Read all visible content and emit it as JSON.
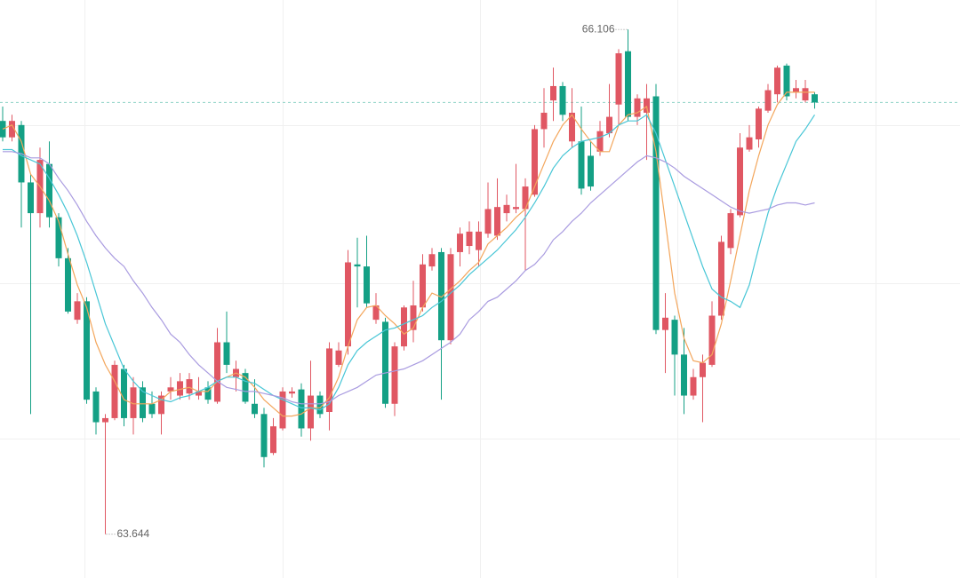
{
  "chart_data": {
    "type": "candlestick",
    "ylim": [
      63.43,
      66.25
    ],
    "yticks": [
      65.64,
      64.87,
      64.11
    ],
    "grid": true,
    "up_color": "#e05763",
    "down_color": "#14a085",
    "last_price_line": {
      "color": "#8fd3c8",
      "dashed": true
    },
    "extreme_labels": true,
    "open": [
      65.66,
      65.58,
      65.64,
      65.36,
      65.21,
      65.45,
      65.19,
      64.99,
      64.69,
      64.78,
      64.34,
      64.19,
      64.21,
      64.45,
      64.21,
      64.36,
      64.28,
      64.23,
      64.34,
      64.32,
      64.33,
      64.32,
      64.36,
      64.29,
      64.58,
      64.41,
      64.43,
      64.28,
      64.23,
      64.04,
      64.16,
      64.33,
      64.35,
      64.16,
      64.32,
      64.24,
      64.47,
      64.56,
      64.96,
      64.95,
      64.69,
      64.68,
      64.28,
      64.56,
      64.64,
      64.75,
      64.95,
      65.02,
      64.59,
      65.02,
      65.05,
      65.03,
      65.11,
      65.1,
      65.21,
      65.23,
      65.23,
      65.3,
      65.62,
      65.76,
      65.83,
      65.56,
      65.56,
      65.49,
      65.51,
      65.6,
      65.74,
      66.0,
      65.68,
      65.7,
      65.78,
      64.64,
      64.69,
      64.52,
      64.32,
      64.41,
      64.47,
      64.71,
      65.04,
      65.2,
      65.52,
      65.57,
      65.71,
      65.79,
      65.93,
      65.8,
      65.76,
      65.79
    ],
    "high": [
      65.73,
      65.69,
      65.66,
      65.4,
      65.53,
      65.56,
      65.21,
      65.04,
      64.82,
      64.8,
      64.36,
      64.23,
      64.49,
      64.47,
      64.41,
      64.39,
      64.34,
      64.34,
      64.41,
      64.43,
      64.43,
      64.41,
      64.39,
      64.65,
      64.73,
      64.49,
      64.45,
      64.4,
      64.26,
      64.21,
      64.36,
      64.36,
      64.38,
      64.49,
      64.34,
      64.58,
      64.58,
      65.03,
      65.09,
      65.1,
      64.82,
      64.7,
      64.58,
      64.76,
      64.88,
      65.01,
      65.04,
      65.04,
      65.04,
      65.14,
      65.17,
      65.17,
      65.36,
      65.38,
      65.3,
      65.45,
      65.38,
      65.64,
      65.82,
      65.92,
      65.85,
      65.82,
      65.73,
      65.56,
      65.66,
      65.84,
      66.01,
      66.106,
      65.79,
      65.84,
      65.84,
      64.82,
      64.71,
      64.65,
      64.45,
      64.52,
      64.78,
      65.1,
      65.23,
      65.6,
      65.64,
      65.73,
      65.84,
      65.93,
      65.94,
      65.86,
      65.86,
      65.8
    ],
    "low": [
      65.56,
      65.56,
      65.14,
      64.23,
      65.14,
      65.14,
      64.95,
      64.72,
      64.67,
      64.28,
      64.13,
      63.644,
      64.2,
      64.17,
      64.13,
      64.19,
      64.21,
      64.13,
      64.3,
      64.3,
      64.3,
      64.3,
      64.28,
      64.28,
      64.43,
      64.34,
      64.28,
      64.21,
      63.97,
      64.03,
      64.15,
      64.31,
      64.12,
      64.1,
      64.21,
      64.15,
      64.46,
      64.52,
      64.75,
      64.75,
      64.67,
      64.26,
      64.22,
      64.54,
      64.58,
      64.73,
      64.93,
      64.3,
      64.57,
      64.95,
      65.01,
      64.95,
      65.09,
      65.08,
      65.17,
      65.21,
      64.93,
      65.29,
      65.53,
      65.66,
      65.66,
      65.53,
      65.3,
      65.32,
      65.49,
      65.58,
      65.64,
      65.66,
      65.64,
      65.47,
      64.62,
      64.43,
      64.32,
      64.23,
      64.3,
      64.19,
      64.46,
      64.69,
      65.01,
      65.19,
      65.51,
      65.53,
      65.7,
      65.75,
      65.76,
      65.77,
      65.75,
      65.72
    ],
    "close": [
      65.58,
      65.66,
      65.36,
      65.21,
      65.47,
      65.19,
      64.99,
      64.73,
      64.78,
      64.3,
      64.19,
      64.21,
      64.47,
      64.21,
      64.36,
      64.21,
      64.23,
      64.32,
      64.36,
      64.39,
      64.4,
      64.34,
      64.3,
      64.58,
      64.47,
      64.45,
      64.29,
      64.23,
      64.02,
      64.17,
      64.34,
      64.34,
      64.16,
      64.32,
      64.23,
      64.55,
      64.54,
      64.97,
      64.95,
      64.77,
      64.76,
      64.28,
      64.56,
      64.75,
      64.76,
      64.96,
      65.01,
      64.59,
      65.01,
      65.11,
      65.12,
      65.12,
      65.23,
      65.24,
      65.25,
      65.24,
      65.34,
      65.62,
      65.7,
      65.83,
      65.69,
      65.7,
      65.33,
      65.34,
      65.61,
      65.68,
      65.99,
      65.68,
      65.77,
      65.77,
      64.64,
      64.7,
      64.52,
      64.32,
      64.41,
      64.48,
      64.71,
      65.07,
      65.21,
      65.53,
      65.58,
      65.72,
      65.81,
      65.92,
      65.78,
      65.82,
      65.82,
      65.75
    ],
    "moving_averages": [
      {
        "color": "#f3a65c",
        "values": [
          65.62,
          65.64,
          65.56,
          65.4,
          65.34,
          65.27,
          65.17,
          65.01,
          64.86,
          64.75,
          64.58,
          64.47,
          64.39,
          64.3,
          64.28,
          64.28,
          64.28,
          64.3,
          64.34,
          64.35,
          64.36,
          64.34,
          64.34,
          64.39,
          64.41,
          64.43,
          64.41,
          64.36,
          64.3,
          64.26,
          64.22,
          64.22,
          64.23,
          64.26,
          64.26,
          64.31,
          64.41,
          64.56,
          64.69,
          64.75,
          64.76,
          64.71,
          64.67,
          64.62,
          64.65,
          64.75,
          64.82,
          64.8,
          64.84,
          64.88,
          64.93,
          64.97,
          65.06,
          65.1,
          65.14,
          65.19,
          65.23,
          65.34,
          65.45,
          65.56,
          65.64,
          65.69,
          65.62,
          65.56,
          65.51,
          65.51,
          65.64,
          65.69,
          65.7,
          65.73,
          65.51,
          65.17,
          64.82,
          64.6,
          64.49,
          64.48,
          64.52,
          64.67,
          64.88,
          65.1,
          65.32,
          65.49,
          65.64,
          65.74,
          65.8,
          65.8,
          65.8,
          65.8
        ]
      },
      {
        "color": "#48c6d6",
        "values": [
          65.52,
          65.52,
          65.49,
          65.47,
          65.45,
          65.38,
          65.3,
          65.21,
          65.1,
          64.97,
          64.82,
          64.67,
          64.56,
          64.45,
          64.39,
          64.34,
          64.32,
          64.3,
          64.29,
          64.31,
          64.32,
          64.34,
          64.36,
          64.39,
          64.41,
          64.41,
          64.39,
          64.38,
          64.35,
          64.32,
          64.3,
          64.28,
          64.26,
          64.26,
          64.25,
          64.28,
          64.36,
          64.47,
          64.54,
          64.58,
          64.61,
          64.64,
          64.65,
          64.67,
          64.69,
          64.71,
          64.75,
          64.78,
          64.82,
          64.86,
          64.91,
          64.95,
          64.99,
          65.03,
          65.08,
          65.13,
          65.19,
          65.26,
          65.34,
          65.43,
          65.49,
          65.53,
          65.56,
          65.57,
          65.58,
          65.6,
          65.64,
          65.66,
          65.66,
          65.69,
          65.6,
          65.47,
          65.34,
          65.21,
          65.08,
          64.95,
          64.84,
          64.8,
          64.78,
          64.75,
          64.86,
          65.04,
          65.21,
          65.34,
          65.45,
          65.56,
          65.62,
          65.69
        ]
      },
      {
        "color": "#a99be0",
        "values": [
          65.51,
          65.51,
          65.5,
          65.48,
          65.48,
          65.45,
          65.38,
          65.32,
          65.25,
          65.17,
          65.1,
          65.04,
          64.99,
          64.95,
          64.88,
          64.82,
          64.75,
          64.69,
          64.62,
          64.58,
          64.52,
          64.47,
          64.43,
          64.39,
          64.36,
          64.35,
          64.34,
          64.34,
          64.33,
          64.32,
          64.31,
          64.29,
          64.28,
          64.28,
          64.28,
          64.29,
          64.32,
          64.34,
          64.36,
          64.39,
          64.42,
          64.43,
          64.44,
          64.45,
          64.47,
          64.49,
          64.52,
          64.55,
          64.58,
          64.62,
          64.69,
          64.73,
          64.78,
          64.8,
          64.84,
          64.88,
          64.93,
          64.96,
          65.01,
          65.08,
          65.12,
          65.17,
          65.21,
          65.26,
          65.3,
          65.34,
          65.38,
          65.42,
          65.46,
          65.49,
          65.48,
          65.46,
          65.43,
          65.39,
          65.36,
          65.33,
          65.3,
          65.27,
          65.24,
          65.22,
          65.21,
          65.22,
          65.23,
          65.25,
          65.26,
          65.26,
          65.25,
          65.26
        ]
      }
    ]
  }
}
